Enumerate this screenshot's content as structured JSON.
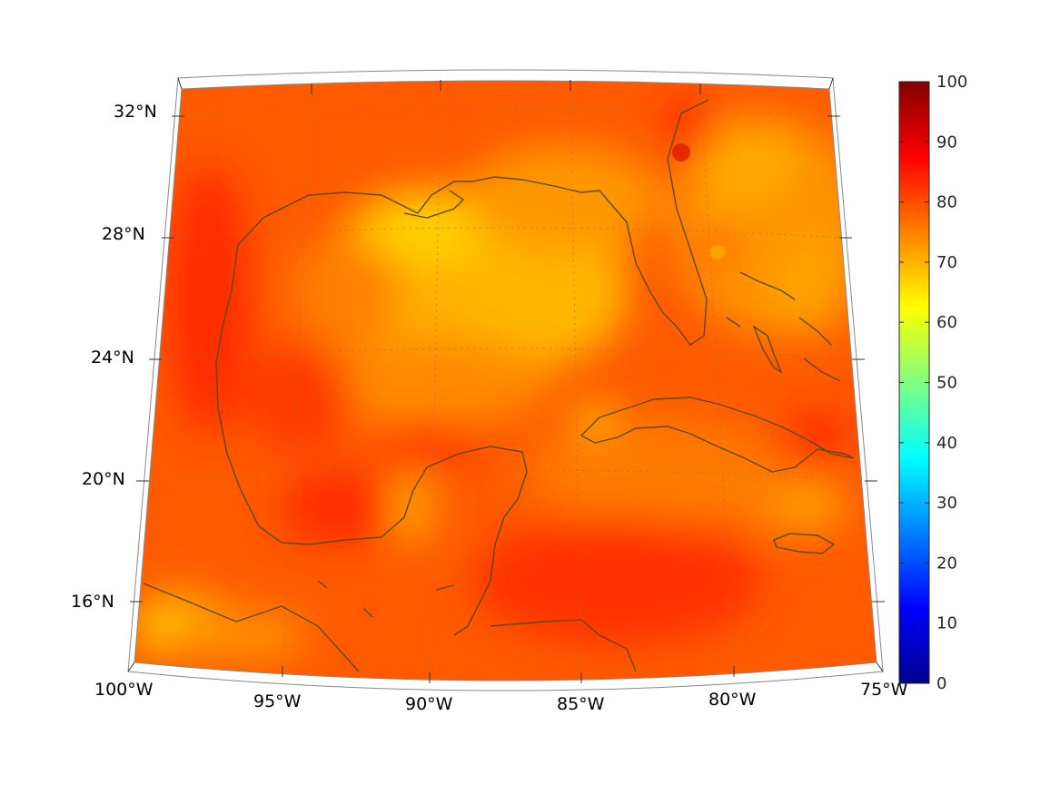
{
  "map": {
    "projection": "conic",
    "field": "heatmap",
    "coastline_color": "#5a4a14",
    "frame_color": "#ffffff",
    "lon_ticks": [
      "100°W",
      "95°W",
      "90°W",
      "85°W",
      "80°W",
      "75°W"
    ],
    "lat_ticks": [
      "16°N",
      "20°N",
      "24°N",
      "28°N",
      "32°N"
    ],
    "dominant_color": "#ff5a00"
  },
  "colorbar": {
    "colormap": "jet",
    "min": 0,
    "max": 100,
    "tick_labels": [
      "0",
      "10",
      "20",
      "30",
      "40",
      "50",
      "60",
      "70",
      "80",
      "90",
      "100"
    ]
  }
}
